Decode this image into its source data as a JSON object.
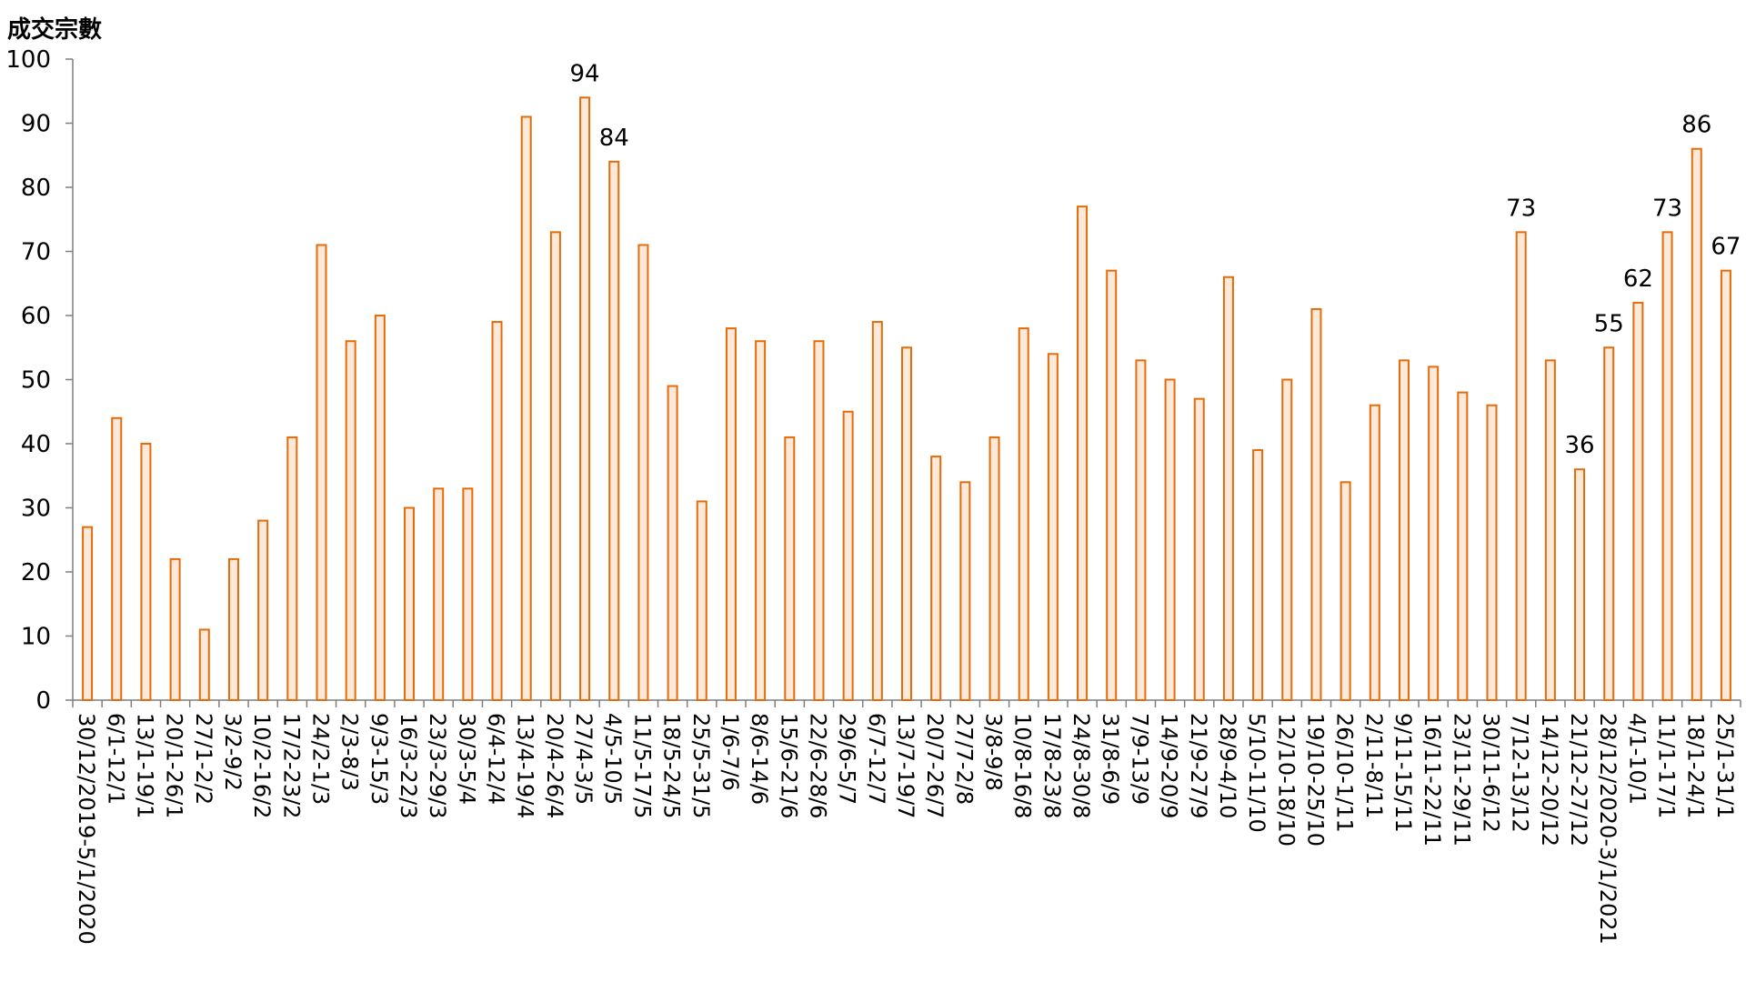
{
  "chart_data": {
    "type": "bar",
    "ylabel": "成交宗數",
    "xlabel": "",
    "ylim": [
      0,
      100
    ],
    "yticks": [
      0,
      10,
      20,
      30,
      40,
      50,
      60,
      70,
      80,
      90,
      100
    ],
    "categories": [
      "30/12/2019-5/1/2020",
      "6/1-12/1",
      "13/1-19/1",
      "20/1-26/1",
      "27/1-2/2",
      "3/2-9/2",
      "10/2-16/2",
      "17/2-23/2",
      "24/2-1/3",
      "2/3-8/3",
      "9/3-15/3",
      "16/3-22/3",
      "23/3-29/3",
      "30/3-5/4",
      "6/4-12/4",
      "13/4-19/4",
      "20/4-26/4",
      "27/4-3/5",
      "4/5-10/5",
      "11/5-17/5",
      "18/5-24/5",
      "25/5-31/5",
      "1/6-7/6",
      "8/6-14/6",
      "15/6-21/6",
      "22/6-28/6",
      "29/6-5/7",
      "6/7-12/7",
      "13/7-19/7",
      "20/7-26/7",
      "27/7-2/8",
      "3/8-9/8",
      "10/8-16/8",
      "17/8-23/8",
      "24/8-30/8",
      "31/8-6/9",
      "7/9-13/9",
      "14/9-20/9",
      "21/9-27/9",
      "28/9-4/10",
      "5/10-11/10",
      "12/10-18/10",
      "19/10-25/10",
      "26/10-1/11",
      "2/11-8/11",
      "9/11-15/11",
      "16/11-22/11",
      "23/11-29/11",
      "30/11-6/12",
      "7/12-13/12",
      "14/12-20/12",
      "21/12-27/12",
      "28/12/2020-3/1/2021",
      "4/1-10/1",
      "11/1-17/1",
      "18/1-24/1",
      "25/1-31/1"
    ],
    "values": [
      27,
      44,
      40,
      22,
      11,
      22,
      28,
      41,
      71,
      56,
      60,
      30,
      33,
      33,
      59,
      91,
      73,
      94,
      84,
      71,
      49,
      31,
      58,
      56,
      41,
      56,
      45,
      59,
      55,
      38,
      34,
      41,
      58,
      54,
      77,
      67,
      53,
      50,
      47,
      66,
      39,
      50,
      61,
      34,
      46,
      53,
      52,
      48,
      46,
      73,
      53,
      36,
      55,
      62,
      73,
      86,
      67
    ],
    "data_labels": [
      {
        "index": 17,
        "text": "94"
      },
      {
        "index": 18,
        "text": "84"
      },
      {
        "index": 49,
        "text": "73"
      },
      {
        "index": 51,
        "text": "36"
      },
      {
        "index": 52,
        "text": "55"
      },
      {
        "index": 53,
        "text": "62"
      },
      {
        "index": 54,
        "text": "73"
      },
      {
        "index": 55,
        "text": "86"
      },
      {
        "index": 56,
        "text": "67"
      }
    ],
    "colors": {
      "bar_fill": "#fde9d9",
      "bar_stroke": "#e46c0a",
      "axis": "#7f7f7f"
    },
    "grid": false,
    "legend": "none"
  }
}
